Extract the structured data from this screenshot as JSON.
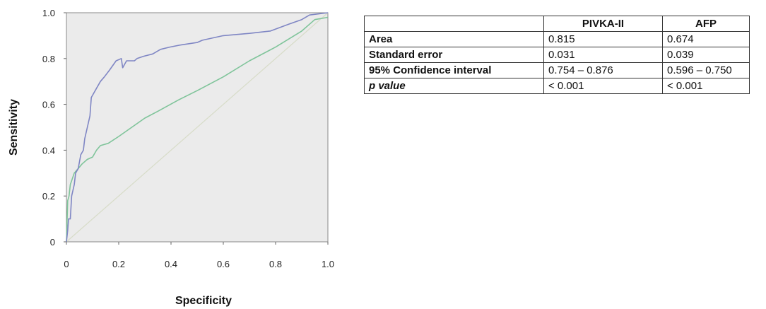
{
  "chart_data": {
    "type": "line",
    "title": "",
    "xlabel": "Specificity",
    "ylabel": "Sensitivity",
    "xlim": [
      0,
      1
    ],
    "ylim": [
      0,
      1
    ],
    "x_ticks": [
      "0",
      "0.2",
      "0.4",
      "0.6",
      "0.8",
      "1.0"
    ],
    "y_ticks": [
      "0",
      "0.2",
      "0.4",
      "0.6",
      "0.8",
      "1.0"
    ],
    "grid": false,
    "series": [
      {
        "color": "#7f86c4",
        "points": [
          [
            0,
            0
          ],
          [
            0.005,
            0.05
          ],
          [
            0.008,
            0.1
          ],
          [
            0.015,
            0.1
          ],
          [
            0.02,
            0.2
          ],
          [
            0.03,
            0.25
          ],
          [
            0.035,
            0.3
          ],
          [
            0.045,
            0.32
          ],
          [
            0.05,
            0.35
          ],
          [
            0.055,
            0.38
          ],
          [
            0.065,
            0.4
          ],
          [
            0.07,
            0.45
          ],
          [
            0.08,
            0.5
          ],
          [
            0.09,
            0.55
          ],
          [
            0.095,
            0.63
          ],
          [
            0.11,
            0.66
          ],
          [
            0.12,
            0.68
          ],
          [
            0.13,
            0.7
          ],
          [
            0.145,
            0.72
          ],
          [
            0.165,
            0.75
          ],
          [
            0.19,
            0.79
          ],
          [
            0.21,
            0.8
          ],
          [
            0.215,
            0.76
          ],
          [
            0.23,
            0.79
          ],
          [
            0.26,
            0.79
          ],
          [
            0.27,
            0.8
          ],
          [
            0.295,
            0.81
          ],
          [
            0.33,
            0.82
          ],
          [
            0.36,
            0.84
          ],
          [
            0.395,
            0.85
          ],
          [
            0.44,
            0.86
          ],
          [
            0.5,
            0.87
          ],
          [
            0.52,
            0.88
          ],
          [
            0.6,
            0.9
          ],
          [
            0.7,
            0.91
          ],
          [
            0.78,
            0.92
          ],
          [
            0.85,
            0.95
          ],
          [
            0.9,
            0.97
          ],
          [
            0.93,
            0.99
          ],
          [
            1,
            1
          ]
        ]
      },
      {
        "color": "#7fc49a",
        "points": [
          [
            0,
            0
          ],
          [
            0.005,
            0.18
          ],
          [
            0.01,
            0.2
          ],
          [
            0.015,
            0.25
          ],
          [
            0.03,
            0.3
          ],
          [
            0.045,
            0.32
          ],
          [
            0.06,
            0.34
          ],
          [
            0.08,
            0.36
          ],
          [
            0.1,
            0.37
          ],
          [
            0.115,
            0.4
          ],
          [
            0.13,
            0.42
          ],
          [
            0.16,
            0.43
          ],
          [
            0.2,
            0.46
          ],
          [
            0.25,
            0.5
          ],
          [
            0.3,
            0.54
          ],
          [
            0.35,
            0.57
          ],
          [
            0.43,
            0.62
          ],
          [
            0.5,
            0.66
          ],
          [
            0.6,
            0.72
          ],
          [
            0.7,
            0.79
          ],
          [
            0.8,
            0.85
          ],
          [
            0.9,
            0.92
          ],
          [
            0.95,
            0.97
          ],
          [
            1,
            0.98
          ]
        ]
      },
      {
        "color": "#d7dcc8",
        "points": [
          [
            0,
            0
          ],
          [
            1,
            1
          ]
        ]
      }
    ]
  },
  "table": {
    "headers": [
      "",
      "PIVKA-II",
      "AFP"
    ],
    "rows": [
      {
        "label": "Area",
        "pivka": "0.815",
        "afp": "0.674"
      },
      {
        "label": "Standard error",
        "pivka": "0.031",
        "afp": "0.039"
      },
      {
        "label": "95% Confidence interval",
        "pivka": "0.754 – 0.876",
        "afp": "0.596 – 0.750"
      },
      {
        "label": "p value",
        "pivka": "< 0.001",
        "afp": "< 0.001"
      }
    ]
  }
}
